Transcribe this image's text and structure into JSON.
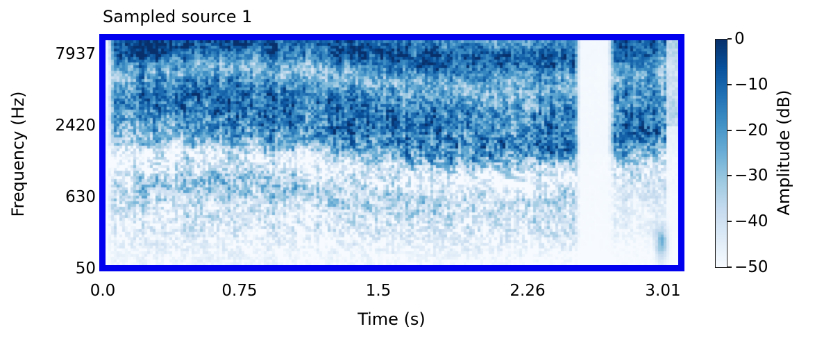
{
  "figure": {
    "title": "Sampled source 1",
    "axes": {
      "xlabel": "Time (s)",
      "ylabel": "Frequency (Hz)",
      "x_ticks": [
        "0.0",
        "0.75",
        "1.5",
        "2.26",
        "3.01"
      ],
      "y_ticks": [
        "7937",
        "2420",
        "630",
        "50"
      ]
    },
    "colorbar": {
      "label": "Amplitude (dB)",
      "ticks": [
        "0",
        "−10",
        "−20",
        "−30",
        "−40",
        "−50"
      ]
    },
    "frame_color": "#0000ee",
    "background_color": "#ffffff"
  },
  "chart_data": {
    "type": "heatmap",
    "title": "Sampled source 1",
    "xlabel": "Time (s)",
    "ylabel": "Frequency (Hz)",
    "colorbar_label": "Amplitude (dB)",
    "x_tick_values_s": [
      0.0,
      0.75,
      1.5,
      2.26,
      3.01
    ],
    "y_tick_values_hz": [
      7937,
      2420,
      630,
      50
    ],
    "frequency_scale": "mel",
    "time_range_s": [
      0.0,
      3.09
    ],
    "amplitude_range_db": [
      -50,
      0
    ],
    "colorbar_tick_values_db": [
      0,
      -10,
      -20,
      -30,
      -40,
      -50
    ],
    "colormap": "Blues",
    "colormap_anchors": [
      [
        0.0,
        [
          247,
          251,
          255
        ]
      ],
      [
        0.125,
        [
          222,
          235,
          247
        ]
      ],
      [
        0.25,
        [
          198,
          219,
          239
        ]
      ],
      [
        0.375,
        [
          158,
          202,
          225
        ]
      ],
      [
        0.5,
        [
          107,
          174,
          214
        ]
      ],
      [
        0.625,
        [
          66,
          146,
          198
        ]
      ],
      [
        0.75,
        [
          33,
          113,
          181
        ]
      ],
      [
        0.875,
        [
          8,
          81,
          156
        ]
      ],
      [
        1.0,
        [
          8,
          48,
          107
        ]
      ]
    ],
    "features": {
      "description": "Noisy broadband mel spectrogram; energy concentrated above ~600 Hz and fading to near-silence at the lowest frequencies",
      "leading_silence_s": [
        0.0,
        0.05
      ],
      "silence_gap_s": [
        2.57,
        2.71
      ],
      "quiet_tail_s": [
        3.02,
        3.09
      ],
      "low_band_burst_s": 2.99
    }
  }
}
